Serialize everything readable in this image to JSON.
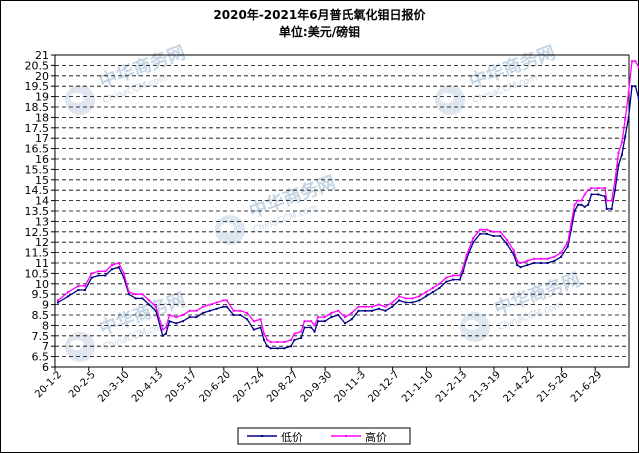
{
  "chart_data": {
    "type": "line",
    "title": "2020年-2021年6月普氏氧化钼日报价",
    "subtitle": "单位:美元/磅钼",
    "ylim": [
      6,
      21
    ],
    "yticks": [
      "6",
      "6.5",
      "7",
      "7.5",
      "8",
      "8.5",
      "9",
      "9.5",
      "10",
      "10.5",
      "11",
      "11.5",
      "12",
      "12.5",
      "13",
      "13.5",
      "14",
      "14.5",
      "15",
      "15.5",
      "16",
      "16.5",
      "17",
      "17.5",
      "18",
      "18.5",
      "19",
      "19.5",
      "20",
      "20.5",
      "21"
    ],
    "xtick_labels": [
      "20-1-2",
      "20-2-5",
      "20-3-10",
      "20-4-13",
      "20-5-17",
      "20-6-20",
      "20-7-24",
      "20-8-27",
      "20-9-30",
      "20-11-3",
      "20-12-7",
      "21-1-10",
      "21-2-13",
      "21-3-19",
      "21-4-22",
      "21-5-26",
      "21-6-29"
    ],
    "grid": true,
    "legend_position": "bottom",
    "series": [
      {
        "name": "低价",
        "color": "#000080",
        "values": [
          [
            0.0,
            9.1
          ],
          [
            0.3,
            9.4
          ],
          [
            0.6,
            9.7
          ],
          [
            0.8,
            9.7
          ],
          [
            1.0,
            10.3
          ],
          [
            1.2,
            10.4
          ],
          [
            1.4,
            10.4
          ],
          [
            1.6,
            10.7
          ],
          [
            1.8,
            10.8
          ],
          [
            1.95,
            10.3
          ],
          [
            2.1,
            9.5
          ],
          [
            2.3,
            9.3
          ],
          [
            2.5,
            9.3
          ],
          [
            2.7,
            9.0
          ],
          [
            2.9,
            8.7
          ],
          [
            3.1,
            7.5
          ],
          [
            3.2,
            7.6
          ],
          [
            3.3,
            8.2
          ],
          [
            3.5,
            8.1
          ],
          [
            3.7,
            8.2
          ],
          [
            3.9,
            8.4
          ],
          [
            4.1,
            8.4
          ],
          [
            4.3,
            8.6
          ],
          [
            4.5,
            8.7
          ],
          [
            4.7,
            8.8
          ],
          [
            4.9,
            8.9
          ],
          [
            5.0,
            8.9
          ],
          [
            5.2,
            8.5
          ],
          [
            5.4,
            8.5
          ],
          [
            5.6,
            8.3
          ],
          [
            5.8,
            7.8
          ],
          [
            6.0,
            7.9
          ],
          [
            6.1,
            7.3
          ],
          [
            6.2,
            7.0
          ],
          [
            6.3,
            6.9
          ],
          [
            6.5,
            6.9
          ],
          [
            6.7,
            6.9
          ],
          [
            6.9,
            7.0
          ],
          [
            7.0,
            7.3
          ],
          [
            7.2,
            7.4
          ],
          [
            7.3,
            7.9
          ],
          [
            7.5,
            7.9
          ],
          [
            7.6,
            7.7
          ],
          [
            7.7,
            8.2
          ],
          [
            7.9,
            8.2
          ],
          [
            8.1,
            8.4
          ],
          [
            8.3,
            8.5
          ],
          [
            8.5,
            8.1
          ],
          [
            8.7,
            8.3
          ],
          [
            8.9,
            8.7
          ],
          [
            9.1,
            8.7
          ],
          [
            9.3,
            8.7
          ],
          [
            9.5,
            8.8
          ],
          [
            9.7,
            8.7
          ],
          [
            9.9,
            8.9
          ],
          [
            10.1,
            9.2
          ],
          [
            10.3,
            9.1
          ],
          [
            10.5,
            9.1
          ],
          [
            10.7,
            9.2
          ],
          [
            10.9,
            9.4
          ],
          [
            11.1,
            9.6
          ],
          [
            11.3,
            9.8
          ],
          [
            11.5,
            10.1
          ],
          [
            11.7,
            10.2
          ],
          [
            11.9,
            10.2
          ],
          [
            12.0,
            10.6
          ],
          [
            12.1,
            11.2
          ],
          [
            12.3,
            12.0
          ],
          [
            12.5,
            12.4
          ],
          [
            12.7,
            12.4
          ],
          [
            12.9,
            12.3
          ],
          [
            13.1,
            12.3
          ],
          [
            13.3,
            11.9
          ],
          [
            13.5,
            11.4
          ],
          [
            13.6,
            10.9
          ],
          [
            13.7,
            10.8
          ],
          [
            13.9,
            10.9
          ],
          [
            14.1,
            11.0
          ],
          [
            14.3,
            11.0
          ],
          [
            14.5,
            11.0
          ],
          [
            14.7,
            11.1
          ],
          [
            14.9,
            11.3
          ],
          [
            15.1,
            11.8
          ],
          [
            15.2,
            12.6
          ],
          [
            15.3,
            13.5
          ],
          [
            15.4,
            13.8
          ],
          [
            15.5,
            13.8
          ],
          [
            15.6,
            13.7
          ],
          [
            15.7,
            13.8
          ],
          [
            15.8,
            14.3
          ],
          [
            16.0,
            14.3
          ],
          [
            16.2,
            14.2
          ],
          [
            16.25,
            13.6
          ],
          [
            16.4,
            13.6
          ],
          [
            16.5,
            14.5
          ],
          [
            16.6,
            15.7
          ],
          [
            16.7,
            16.2
          ],
          [
            16.8,
            17.1
          ],
          [
            16.9,
            18.0
          ],
          [
            17.0,
            19.5
          ],
          [
            17.1,
            19.5
          ],
          [
            17.2,
            18.9
          ],
          [
            17.3,
            18.7
          ],
          [
            17.4,
            18.7
          ],
          [
            17.5,
            18.6
          ],
          [
            17.6,
            18.5
          ]
        ]
      },
      {
        "name": "高价",
        "color": "#ff00ff",
        "values": [
          [
            0.0,
            9.2
          ],
          [
            0.3,
            9.6
          ],
          [
            0.6,
            9.9
          ],
          [
            0.8,
            9.9
          ],
          [
            1.0,
            10.5
          ],
          [
            1.2,
            10.6
          ],
          [
            1.4,
            10.6
          ],
          [
            1.6,
            10.9
          ],
          [
            1.8,
            11.0
          ],
          [
            1.95,
            10.5
          ],
          [
            2.1,
            9.6
          ],
          [
            2.3,
            9.5
          ],
          [
            2.5,
            9.5
          ],
          [
            2.7,
            9.2
          ],
          [
            2.9,
            8.9
          ],
          [
            3.1,
            7.8
          ],
          [
            3.2,
            7.9
          ],
          [
            3.3,
            8.5
          ],
          [
            3.5,
            8.4
          ],
          [
            3.7,
            8.5
          ],
          [
            3.9,
            8.7
          ],
          [
            4.1,
            8.7
          ],
          [
            4.3,
            8.9
          ],
          [
            4.5,
            9.0
          ],
          [
            4.7,
            9.1
          ],
          [
            4.9,
            9.2
          ],
          [
            5.0,
            9.2
          ],
          [
            5.2,
            8.7
          ],
          [
            5.4,
            8.7
          ],
          [
            5.6,
            8.6
          ],
          [
            5.8,
            8.2
          ],
          [
            6.0,
            8.3
          ],
          [
            6.1,
            7.6
          ],
          [
            6.2,
            7.3
          ],
          [
            6.3,
            7.2
          ],
          [
            6.5,
            7.2
          ],
          [
            6.7,
            7.2
          ],
          [
            6.9,
            7.3
          ],
          [
            7.0,
            7.6
          ],
          [
            7.2,
            7.7
          ],
          [
            7.3,
            8.2
          ],
          [
            7.5,
            8.2
          ],
          [
            7.6,
            8.0
          ],
          [
            7.7,
            8.4
          ],
          [
            7.9,
            8.4
          ],
          [
            8.1,
            8.6
          ],
          [
            8.3,
            8.7
          ],
          [
            8.5,
            8.4
          ],
          [
            8.7,
            8.6
          ],
          [
            8.9,
            8.9
          ],
          [
            9.1,
            8.9
          ],
          [
            9.3,
            8.9
          ],
          [
            9.5,
            9.0
          ],
          [
            9.7,
            8.9
          ],
          [
            9.9,
            9.1
          ],
          [
            10.1,
            9.4
          ],
          [
            10.3,
            9.3
          ],
          [
            10.5,
            9.3
          ],
          [
            10.7,
            9.4
          ],
          [
            10.9,
            9.6
          ],
          [
            11.1,
            9.8
          ],
          [
            11.3,
            10.0
          ],
          [
            11.5,
            10.3
          ],
          [
            11.7,
            10.4
          ],
          [
            11.9,
            10.4
          ],
          [
            12.0,
            10.8
          ],
          [
            12.1,
            11.4
          ],
          [
            12.3,
            12.2
          ],
          [
            12.5,
            12.6
          ],
          [
            12.7,
            12.6
          ],
          [
            12.9,
            12.5
          ],
          [
            13.1,
            12.5
          ],
          [
            13.3,
            12.1
          ],
          [
            13.5,
            11.6
          ],
          [
            13.6,
            11.1
          ],
          [
            13.7,
            11.0
          ],
          [
            13.9,
            11.1
          ],
          [
            14.1,
            11.2
          ],
          [
            14.3,
            11.2
          ],
          [
            14.5,
            11.2
          ],
          [
            14.7,
            11.3
          ],
          [
            14.9,
            11.5
          ],
          [
            15.1,
            12.0
          ],
          [
            15.2,
            12.9
          ],
          [
            15.3,
            13.8
          ],
          [
            15.4,
            14.0
          ],
          [
            15.5,
            14.0
          ],
          [
            15.6,
            14.3
          ],
          [
            15.7,
            14.5
          ],
          [
            15.8,
            14.6
          ],
          [
            16.0,
            14.6
          ],
          [
            16.2,
            14.6
          ],
          [
            16.25,
            14.0
          ],
          [
            16.4,
            14.0
          ],
          [
            16.5,
            15.0
          ],
          [
            16.6,
            16.3
          ],
          [
            16.7,
            16.8
          ],
          [
            16.8,
            17.9
          ],
          [
            16.9,
            19.2
          ],
          [
            17.0,
            20.7
          ],
          [
            17.1,
            20.7
          ],
          [
            17.2,
            20.4
          ],
          [
            17.3,
            20.4
          ],
          [
            17.4,
            20.4
          ],
          [
            17.5,
            20.3
          ],
          [
            17.6,
            19.8
          ]
        ]
      }
    ]
  },
  "watermark": {
    "text": "中华商务网",
    "subtext": "ChinaCCM.com"
  }
}
